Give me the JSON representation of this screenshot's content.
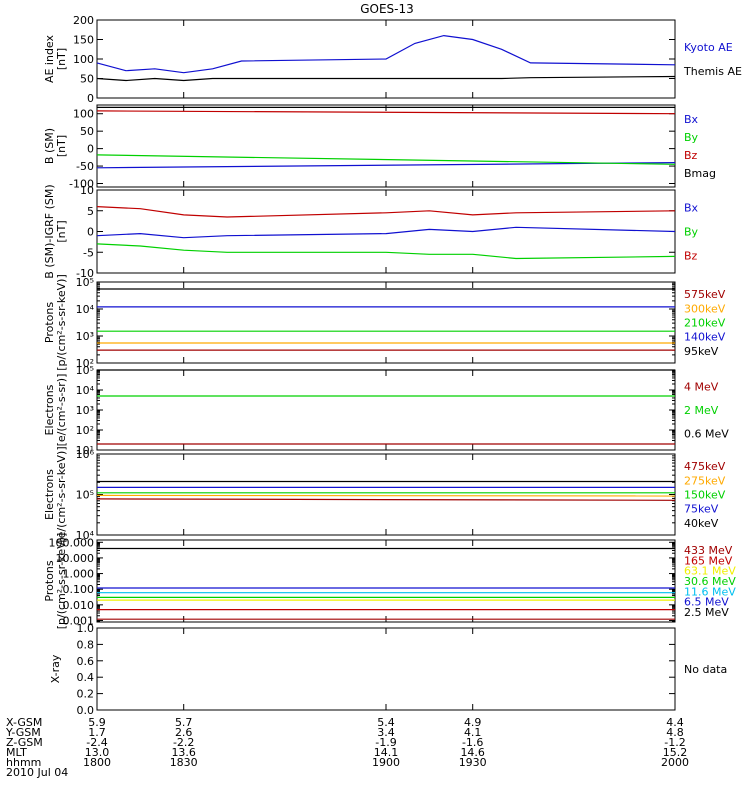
{
  "title": "GOES-13",
  "colors": {
    "black": "#000000",
    "blue": "#1010d0",
    "red": "#c00000",
    "green": "#00d000",
    "orange": "#ffaa00",
    "cyan": "#00c0f0",
    "yellow": "#f0f000",
    "purple": "#9000a0",
    "darkred": "#a00000"
  },
  "x_axis": {
    "ticks": [
      1800,
      1830,
      1900,
      1930,
      2000
    ],
    "rows": [
      {
        "label": "X-GSM",
        "values": [
          "5.9",
          "5.7",
          "5.4",
          "4.9",
          "4.4"
        ]
      },
      {
        "label": "Y-GSM",
        "values": [
          "1.7",
          "2.6",
          "3.4",
          "4.1",
          "4.8"
        ]
      },
      {
        "label": "Z-GSM",
        "values": [
          "-2.4",
          "-2.2",
          "-1.9",
          "-1.6",
          "-1.2"
        ]
      },
      {
        "label": "MLT",
        "values": [
          "13.0",
          "13.6",
          "14.1",
          "14.6",
          "15.2"
        ]
      },
      {
        "label": "hhmm",
        "values": [
          "1800",
          "1830",
          "1900",
          "1930",
          "2000"
        ]
      }
    ],
    "date": "2010 Jul 04"
  },
  "chart_data": [
    {
      "type": "line",
      "ylabel": "AE index\n[nT]",
      "scale": "linear",
      "ylim": [
        0,
        200
      ],
      "yticks": [
        "0",
        "50",
        "100",
        "150",
        "200"
      ],
      "tickvals": [
        0,
        50,
        100,
        150,
        200
      ],
      "x": [
        1800,
        1810,
        1820,
        1830,
        1840,
        1850,
        1900,
        1910,
        1920,
        1930,
        1940,
        1950,
        2000
      ],
      "series": [
        {
          "name": "Kyoto AE",
          "color": "blue",
          "values": [
            90,
            70,
            75,
            65,
            75,
            95,
            100,
            140,
            160,
            150,
            125,
            90,
            85
          ]
        },
        {
          "name": "Themis AE",
          "color": "black",
          "values": [
            50,
            45,
            50,
            45,
            50,
            50,
            50,
            50,
            50,
            50,
            50,
            52,
            55
          ]
        }
      ]
    },
    {
      "type": "line",
      "ylabel": "B (SM)\n[nT]",
      "scale": "linear",
      "ylim": [
        -110,
        125
      ],
      "yticks": [
        "-100",
        "-50",
        "0",
        "50",
        "100"
      ],
      "tickvals": [
        -100,
        -50,
        0,
        50,
        100
      ],
      "x": [
        1800,
        2000
      ],
      "series": [
        {
          "name": "Bx",
          "color": "blue",
          "values": [
            -55,
            -40
          ]
        },
        {
          "name": "By",
          "color": "green",
          "values": [
            -18,
            -45
          ]
        },
        {
          "name": "Bz",
          "color": "red",
          "values": [
            108,
            100
          ]
        },
        {
          "name": "Bmag",
          "color": "black",
          "values": [
            118,
            118
          ]
        }
      ]
    },
    {
      "type": "line",
      "ylabel": "B (SM)-IGRF (SM)\n[nT]",
      "scale": "linear",
      "ylim": [
        -10,
        10
      ],
      "yticks": [
        "-10",
        "-5",
        "0",
        "5",
        "10"
      ],
      "tickvals": [
        -10,
        -5,
        0,
        5,
        10
      ],
      "x": [
        1800,
        1815,
        1830,
        1845,
        1900,
        1915,
        1930,
        1945,
        2000
      ],
      "series": [
        {
          "name": "Bx",
          "color": "blue",
          "values": [
            -1,
            -0.5,
            -1.5,
            -1,
            -0.5,
            0.5,
            0,
            1,
            0
          ]
        },
        {
          "name": "By",
          "color": "green",
          "values": [
            -3,
            -3.5,
            -4.5,
            -5,
            -5,
            -5.5,
            -5.5,
            -6.5,
            -6
          ]
        },
        {
          "name": "Bz",
          "color": "red",
          "values": [
            6,
            5.5,
            4,
            3.5,
            4.5,
            5,
            4,
            4.5,
            5
          ]
        }
      ]
    },
    {
      "type": "line",
      "ylabel": "Protons\n[p/(cm²-s-sr-keV)]",
      "scale": "log",
      "ylim": [
        100,
        100000
      ],
      "yticks": [
        "10²",
        "10³",
        "10⁴",
        "10⁵"
      ],
      "tickvals": [
        100,
        1000,
        10000,
        100000
      ],
      "x": [
        1800,
        2000
      ],
      "series": [
        {
          "name": "575keV",
          "color": "darkred",
          "values": [
            300,
            300
          ]
        },
        {
          "name": "300keV",
          "color": "orange",
          "values": [
            550,
            550
          ]
        },
        {
          "name": "210keV",
          "color": "green",
          "values": [
            1500,
            1500
          ]
        },
        {
          "name": "140keV",
          "color": "blue",
          "values": [
            12000,
            12000
          ]
        },
        {
          "name": "95keV",
          "color": "black",
          "values": [
            55000,
            55000
          ]
        }
      ]
    },
    {
      "type": "line",
      "ylabel": "Electrons\n[e/(cm²-s-sr)]",
      "scale": "log",
      "ylim": [
        10,
        100000
      ],
      "yticks": [
        "10¹",
        "10²",
        "10³",
        "10⁴",
        "10⁵"
      ],
      "tickvals": [
        10,
        100,
        1000,
        10000,
        100000
      ],
      "x": [
        1800,
        2000
      ],
      "series": [
        {
          "name": "4 MeV",
          "color": "darkred",
          "values": [
            20,
            20
          ]
        },
        {
          "name": "2 MeV",
          "color": "green",
          "values": [
            5000,
            5000
          ]
        },
        {
          "name": "0.6 MeV",
          "color": "black",
          "values": [
            100000,
            100000
          ]
        }
      ]
    },
    {
      "type": "line",
      "ylabel": "Electrons\n[e/(cm²-s-sr-keV)]",
      "scale": "log",
      "ylim": [
        10000,
        1000000
      ],
      "yticks": [
        "10⁴",
        "10⁵",
        "10⁶"
      ],
      "tickvals": [
        10000,
        100000,
        1000000
      ],
      "x": [
        1800,
        2000
      ],
      "series": [
        {
          "name": "475keV",
          "color": "darkred",
          "values": [
            78000,
            72000
          ]
        },
        {
          "name": "275keV",
          "color": "orange",
          "values": [
            95000,
            92000
          ]
        },
        {
          "name": "150keV",
          "color": "green",
          "values": [
            110000,
            110000
          ]
        },
        {
          "name": "75keV",
          "color": "blue",
          "values": [
            150000,
            150000
          ]
        },
        {
          "name": "40keV",
          "color": "black",
          "values": [
            210000,
            210000
          ]
        }
      ]
    },
    {
      "type": "line",
      "ylabel": "Protons\n[p/(cm²-s-sr-keV)]",
      "scale": "log",
      "ylim": [
        0.0008,
        140
      ],
      "yticks": [
        "0.001",
        "0.010",
        "0.100",
        "1.000",
        "10.000",
        "100.000"
      ],
      "tickvals": [
        0.001,
        0.01,
        0.1,
        1,
        10,
        100
      ],
      "x": [
        1800,
        2000
      ],
      "series": [
        {
          "name": "433 MeV",
          "color": "darkred",
          "values": [
            0.0012,
            0.0012
          ]
        },
        {
          "name": "165 MeV",
          "color": "red",
          "values": [
            0.005,
            0.005
          ]
        },
        {
          "name": "63.1 MeV",
          "color": "yellow",
          "values": [
            0.02,
            0.02
          ]
        },
        {
          "name": "30.6 MeV",
          "color": "green",
          "values": [
            0.03,
            0.03
          ]
        },
        {
          "name": "11.6 MeV",
          "color": "cyan",
          "values": [
            0.06,
            0.06
          ]
        },
        {
          "name": "6.5 MeV",
          "color": "blue",
          "values": [
            0.12,
            0.12
          ]
        },
        {
          "name": "2.5 MeV",
          "color": "black",
          "values": [
            40,
            40
          ]
        }
      ]
    },
    {
      "type": "line",
      "ylabel": "X-ray",
      "scale": "linear",
      "ylim": [
        0,
        1
      ],
      "yticks": [
        "0.0",
        "0.2",
        "0.4",
        "0.6",
        "0.8",
        "1.0"
      ],
      "tickvals": [
        0,
        0.2,
        0.4,
        0.6,
        0.8,
        1.0
      ],
      "x": [
        1800,
        2000
      ],
      "series": [],
      "note": "No data"
    }
  ]
}
